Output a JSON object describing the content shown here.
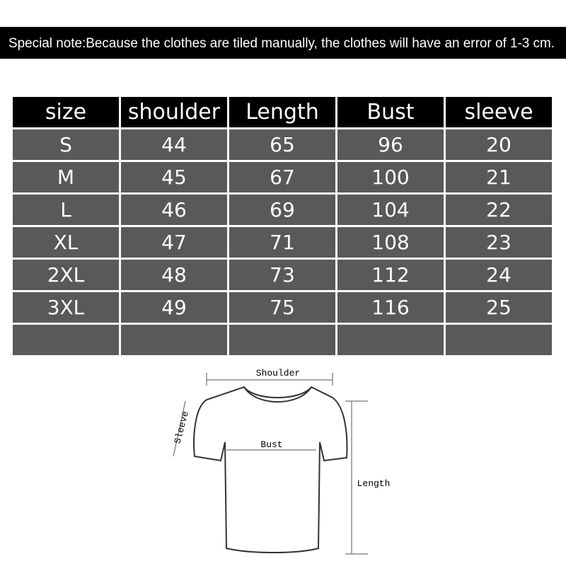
{
  "note": "Special note:Because the clothes are tiled manually, the clothes will have an error of 1-3 cm.",
  "table": {
    "header": [
      "size",
      "shoulder",
      "Length",
      "Bust",
      "sleeve"
    ],
    "rows": [
      [
        "S",
        "44",
        "65",
        "96",
        "20"
      ],
      [
        "M",
        "45",
        "67",
        "100",
        "21"
      ],
      [
        "L",
        "46",
        "69",
        "104",
        "22"
      ],
      [
        "XL",
        "47",
        "71",
        "108",
        "23"
      ],
      [
        "2XL",
        "48",
        "73",
        "112",
        "24"
      ],
      [
        "3XL",
        "49",
        "75",
        "116",
        "25"
      ]
    ]
  },
  "diagram": {
    "shoulder": "Shoulder",
    "sleeve": "Sleeve",
    "bust": "Bust",
    "length": "Length"
  }
}
